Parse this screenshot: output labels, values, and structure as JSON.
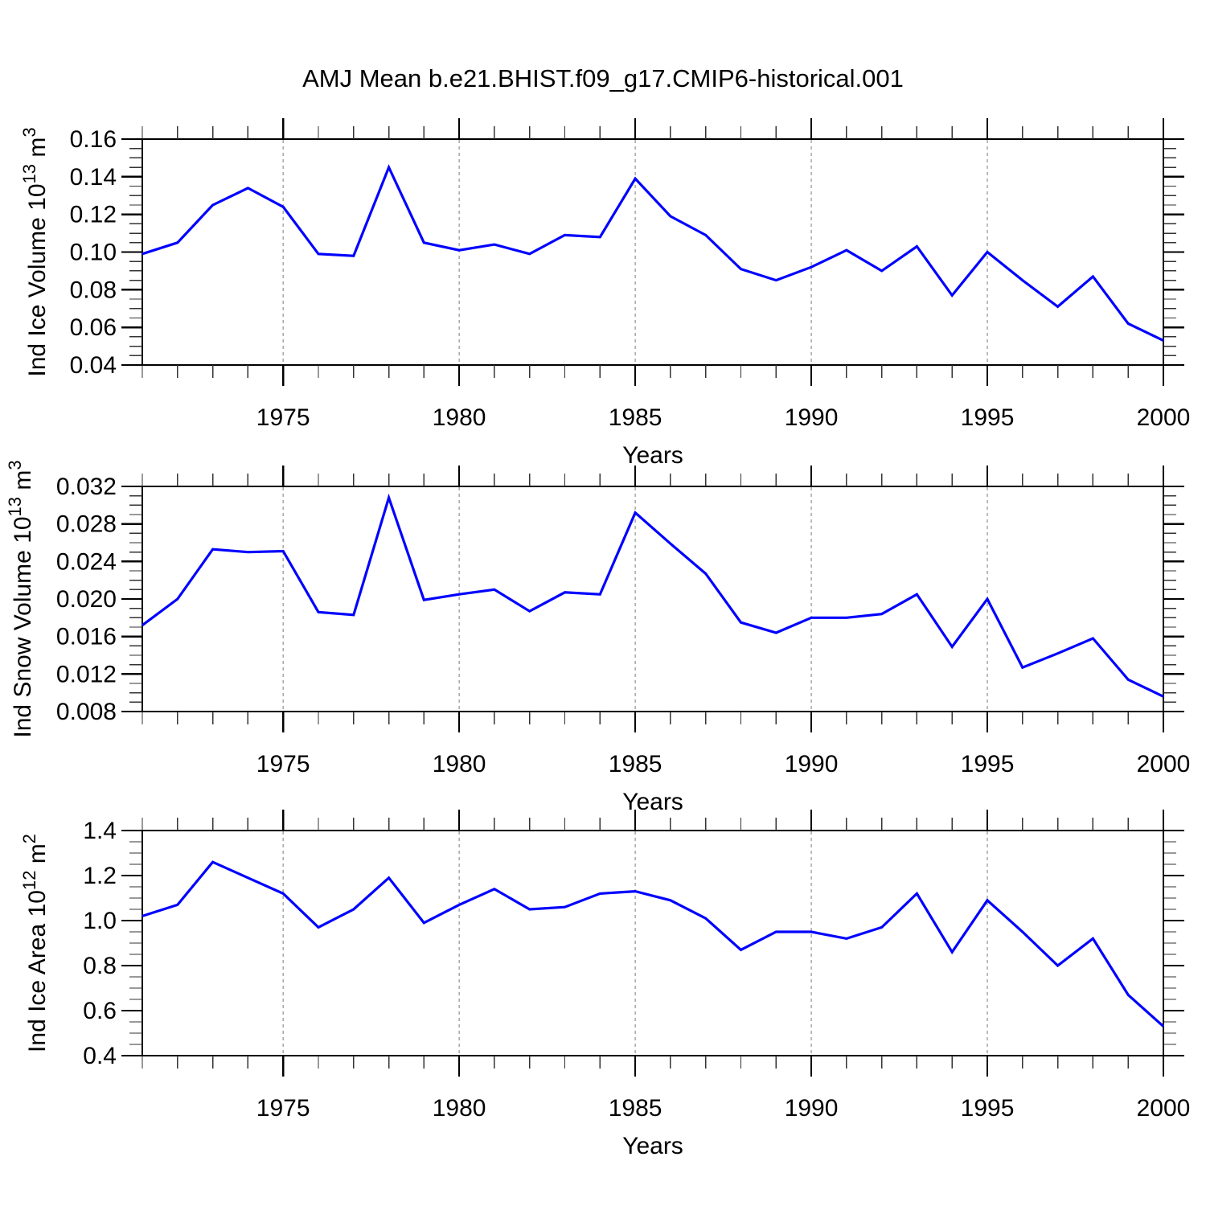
{
  "title": "AMJ Mean b.e21.BHIST.f09_g17.CMIP6-historical.001",
  "colors": {
    "line": "#0000ff",
    "grid": "#999999",
    "axis": "#000000",
    "minor_tick": "#333333"
  },
  "chart_data": [
    {
      "type": "line",
      "title": "",
      "xlabel": "Years",
      "ylabel": "Ind Ice Volume 10^13 m^3",
      "ylabel_parts": [
        {
          "t": "Ind Ice Volume 10"
        },
        {
          "t": "13",
          "sup": true
        },
        {
          "t": " m"
        },
        {
          "t": "3",
          "sup": true
        }
      ],
      "x": [
        1971,
        1972,
        1973,
        1974,
        1975,
        1976,
        1977,
        1978,
        1979,
        1980,
        1981,
        1982,
        1983,
        1984,
        1985,
        1986,
        1987,
        1988,
        1989,
        1990,
        1991,
        1992,
        1993,
        1994,
        1995,
        1996,
        1997,
        1998,
        1999,
        2000
      ],
      "values": [
        0.099,
        0.105,
        0.125,
        0.134,
        0.124,
        0.099,
        0.098,
        0.145,
        0.105,
        0.101,
        0.104,
        0.099,
        0.109,
        0.108,
        0.139,
        0.119,
        0.109,
        0.091,
        0.085,
        0.092,
        0.101,
        0.09,
        0.103,
        0.077,
        0.1,
        0.085,
        0.071,
        0.087,
        0.062,
        0.053
      ],
      "xlim": [
        1971,
        2000
      ],
      "ylim": [
        0.04,
        0.16
      ],
      "y_minor_steps": 24,
      "y_major_every": 4,
      "yticks_labels": [
        "0.04",
        "0.06",
        "0.08",
        "0.10",
        "0.12",
        "0.14",
        "0.16"
      ],
      "xticks_labels": [
        "1975",
        "1980",
        "1985",
        "1990",
        "1995",
        "2000"
      ],
      "xticks_years": [
        1975,
        1980,
        1985,
        1990,
        1995,
        2000
      ],
      "grid_x": [
        1975,
        1980,
        1985,
        1990,
        1995
      ],
      "grid": "vertical-dashed",
      "legend": "none"
    },
    {
      "type": "line",
      "title": "",
      "xlabel": "Years",
      "ylabel": "Ind Snow Volume 10^13 m^3",
      "ylabel_parts": [
        {
          "t": "Ind Snow Volume 10"
        },
        {
          "t": "13",
          "sup": true
        },
        {
          "t": " m"
        },
        {
          "t": "3",
          "sup": true
        }
      ],
      "x": [
        1971,
        1972,
        1973,
        1974,
        1975,
        1976,
        1977,
        1978,
        1979,
        1980,
        1981,
        1982,
        1983,
        1984,
        1985,
        1986,
        1987,
        1988,
        1989,
        1990,
        1991,
        1992,
        1993,
        1994,
        1995,
        1996,
        1997,
        1998,
        1999,
        2000
      ],
      "values": [
        0.0172,
        0.02,
        0.0253,
        0.025,
        0.0251,
        0.0186,
        0.0183,
        0.0308,
        0.0199,
        0.0205,
        0.021,
        0.0187,
        0.0207,
        0.0205,
        0.0292,
        0.0259,
        0.0227,
        0.0175,
        0.0164,
        0.018,
        0.018,
        0.0184,
        0.0205,
        0.0149,
        0.02,
        0.0127,
        0.0142,
        0.0158,
        0.0114,
        0.0096
      ],
      "xlim": [
        1971,
        2000
      ],
      "ylim": [
        0.008,
        0.032
      ],
      "y_minor_steps": 24,
      "y_major_every": 4,
      "yticks_labels": [
        "0.008",
        "0.012",
        "0.016",
        "0.020",
        "0.024",
        "0.028",
        "0.032"
      ],
      "xticks_labels": [
        "1975",
        "1980",
        "1985",
        "1990",
        "1995",
        "2000"
      ],
      "xticks_years": [
        1975,
        1980,
        1985,
        1990,
        1995,
        2000
      ],
      "grid_x": [
        1975,
        1980,
        1985,
        1990,
        1995
      ],
      "grid": "vertical-dashed",
      "legend": "none"
    },
    {
      "type": "line",
      "title": "",
      "xlabel": "Years",
      "ylabel": "Ind Ice Area 10^12 m^2",
      "ylabel_parts": [
        {
          "t": "Ind Ice Area 10"
        },
        {
          "t": "12",
          "sup": true
        },
        {
          "t": " m"
        },
        {
          "t": "2",
          "sup": true
        }
      ],
      "x": [
        1971,
        1972,
        1973,
        1974,
        1975,
        1976,
        1977,
        1978,
        1979,
        1980,
        1981,
        1982,
        1983,
        1984,
        1985,
        1986,
        1987,
        1988,
        1989,
        1990,
        1991,
        1992,
        1993,
        1994,
        1995,
        1996,
        1997,
        1998,
        1999,
        2000
      ],
      "values": [
        1.02,
        1.07,
        1.26,
        1.19,
        1.12,
        0.97,
        1.05,
        1.19,
        0.99,
        1.07,
        1.14,
        1.05,
        1.06,
        1.12,
        1.13,
        1.09,
        1.01,
        0.87,
        0.95,
        0.95,
        0.92,
        0.97,
        1.12,
        0.86,
        1.09,
        0.95,
        0.8,
        0.92,
        0.67,
        0.53
      ],
      "xlim": [
        1971,
        2000
      ],
      "ylim": [
        0.4,
        1.4
      ],
      "y_minor_steps": 20,
      "y_major_every": 4,
      "yticks_labels": [
        "0.4",
        "0.6",
        "0.8",
        "1.0",
        "1.2",
        "1.4"
      ],
      "xticks_labels": [
        "1975",
        "1980",
        "1985",
        "1990",
        "1995",
        "2000"
      ],
      "xticks_years": [
        1975,
        1980,
        1985,
        1990,
        1995,
        2000
      ],
      "grid_x": [
        1975,
        1980,
        1985,
        1990,
        1995
      ],
      "grid": "vertical-dashed",
      "legend": "none"
    }
  ]
}
